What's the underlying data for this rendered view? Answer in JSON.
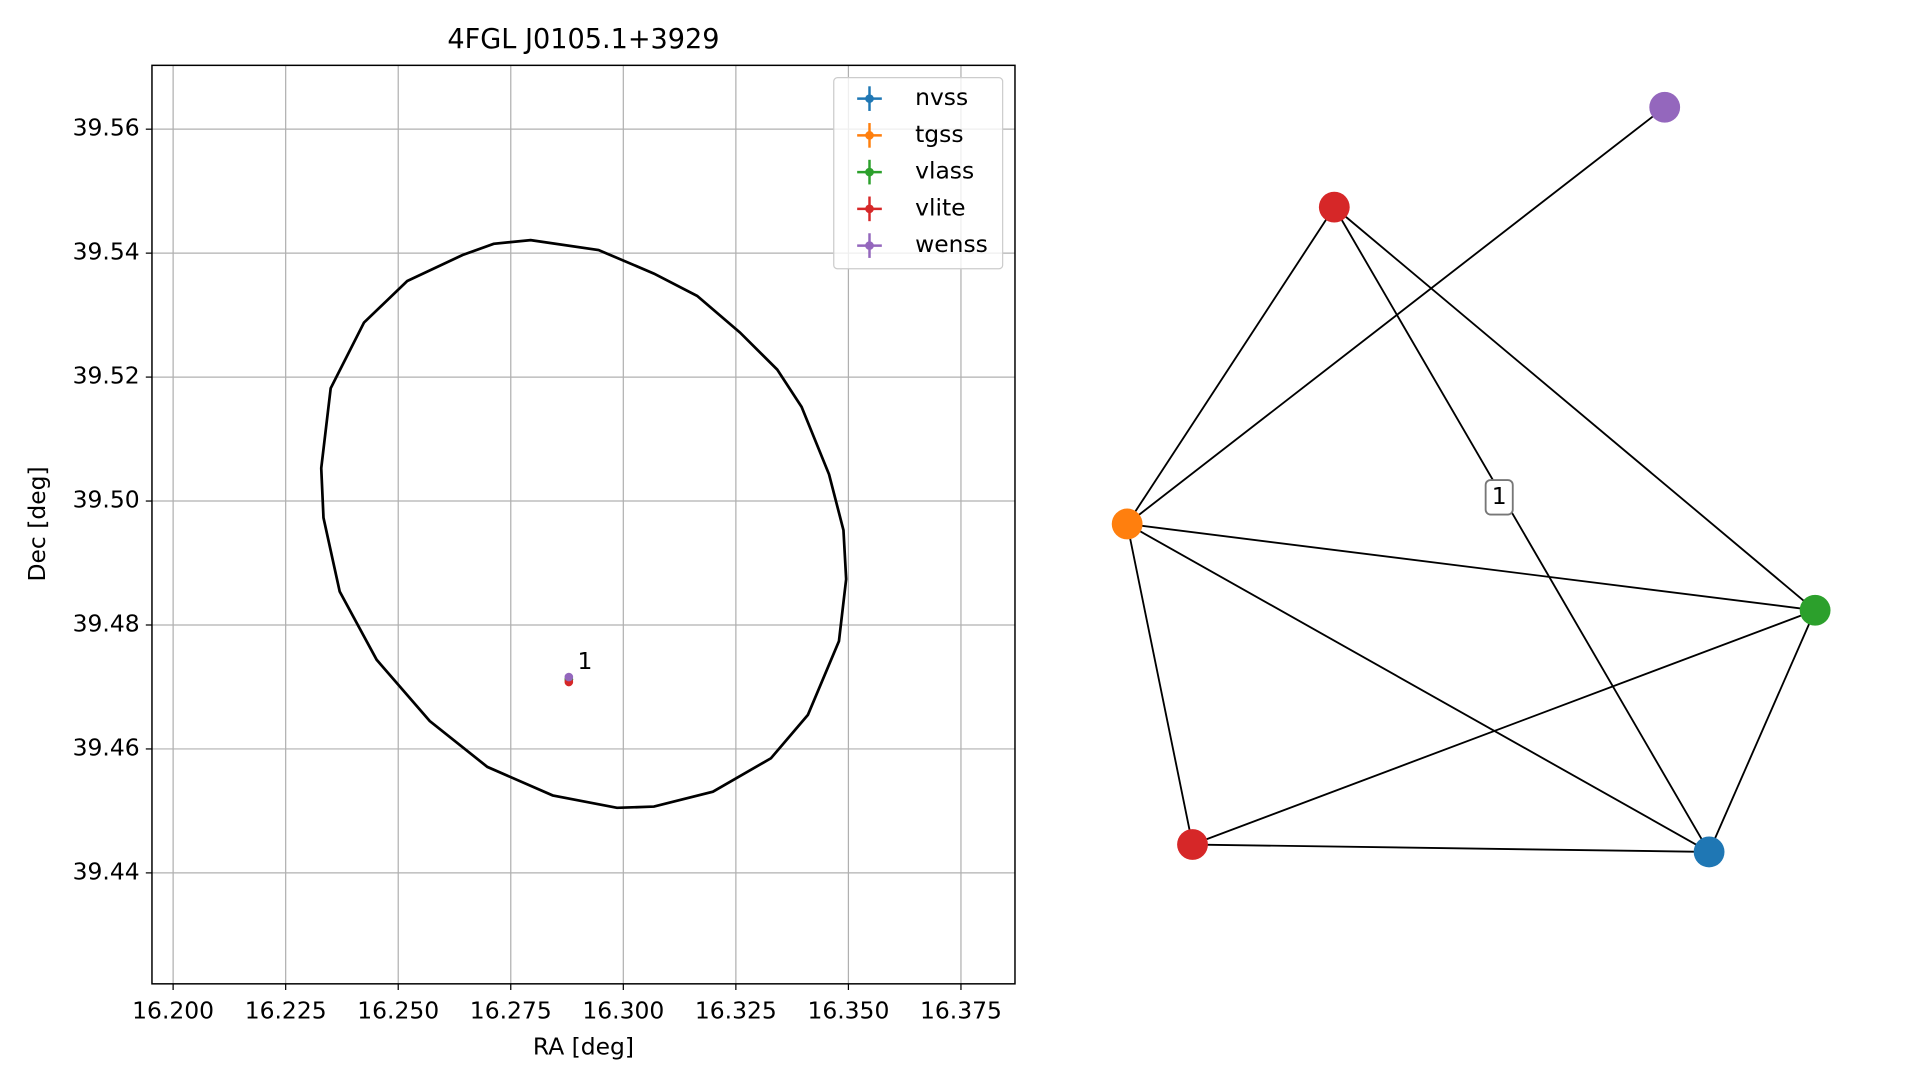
{
  "chart_data": [
    {
      "type": "scatter",
      "title": "4FGL J0105.1+3929",
      "xlabel": "RA [deg]",
      "ylabel": "Dec [deg]",
      "xlim": [
        16.1953,
        16.387
      ],
      "ylim": [
        39.4221,
        39.5703
      ],
      "xticks": [
        {
          "value": 16.2,
          "label": "16.200"
        },
        16.225,
        {
          "value": 16.25,
          "label": "16.250"
        },
        16.275,
        {
          "value": 16.3,
          "label": "16.300"
        },
        16.325,
        {
          "value": 16.35,
          "label": "16.350"
        },
        16.375
      ],
      "yticks": [
        39.44,
        39.46,
        39.48,
        {
          "value": 39.5,
          "label": "39.50"
        },
        39.52,
        39.54,
        39.56
      ],
      "grid": true,
      "legend": "upper right",
      "series": [
        {
          "name": "nvss",
          "color": "#1f77b4",
          "x": [
            16.2879
          ],
          "y": [
            39.4712
          ]
        },
        {
          "name": "tgss",
          "color": "#ff7f0e",
          "x": [
            16.2879
          ],
          "y": [
            39.4712
          ]
        },
        {
          "name": "vlass",
          "color": "#2ca02c",
          "x": [
            16.2879
          ],
          "y": [
            39.4712
          ]
        },
        {
          "name": "vlite",
          "color": "#d62728",
          "x": [
            16.2879
          ],
          "y": [
            39.4708
          ]
        },
        {
          "name": "wenss",
          "color": "#9467bd",
          "x": [
            16.2879
          ],
          "y": [
            39.4716
          ]
        }
      ],
      "ellipse": {
        "color": "#000000",
        "x": [
          16.2794,
          16.2945,
          16.3068,
          16.3164,
          16.3259,
          16.3342,
          16.3396,
          16.3457,
          16.3489,
          16.3495,
          16.3479,
          16.341,
          16.3328,
          16.3199,
          16.3068,
          16.2986,
          16.2843,
          16.2698,
          16.257,
          16.2452,
          16.237,
          16.2334,
          16.2329,
          16.235,
          16.2424,
          16.252,
          16.2643,
          16.2712
        ],
        "y": [
          39.5421,
          39.5405,
          39.5367,
          39.5331,
          39.5272,
          39.5212,
          39.5152,
          39.5043,
          39.4953,
          39.4874,
          39.4774,
          39.4655,
          39.4585,
          39.4531,
          39.4507,
          39.4505,
          39.4525,
          39.4571,
          39.4645,
          39.4744,
          39.4854,
          39.4973,
          39.5053,
          39.5182,
          39.5288,
          39.5355,
          39.5397,
          39.5415
        ]
      },
      "annotations": [
        {
          "text": "1",
          "x": 16.2879,
          "y": 39.4716
        }
      ]
    },
    {
      "type": "network",
      "nodes": [
        {
          "color": "#d62728"
        },
        {
          "color": "#9467bd"
        },
        {
          "color": "#ff7f0e"
        },
        {
          "color": "#2ca02c"
        },
        {
          "color": "#d62728"
        },
        {
          "color": "#1f77b4"
        }
      ],
      "edges": [
        [
          0,
          2
        ],
        [
          0,
          3
        ],
        [
          0,
          5
        ],
        [
          1,
          2
        ],
        [
          2,
          3
        ],
        [
          2,
          4
        ],
        [
          2,
          5
        ],
        [
          3,
          4
        ],
        [
          3,
          5
        ],
        [
          4,
          5
        ]
      ],
      "edge_labels": [
        {
          "edge": 2,
          "label": "1"
        }
      ]
    }
  ]
}
